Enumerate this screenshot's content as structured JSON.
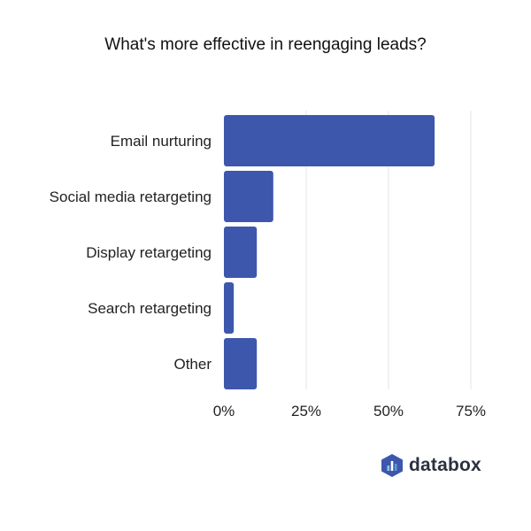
{
  "chart_data": {
    "type": "bar",
    "orientation": "horizontal",
    "title": "What's more effective in reengaging leads?",
    "categories": [
      "Email nurturing",
      "Social media retargeting",
      "Display retargeting",
      "Search retargeting",
      "Other"
    ],
    "values": [
      64,
      15,
      10,
      3,
      10
    ],
    "xlabel": "",
    "ylabel": "",
    "xlim": [
      0,
      75
    ],
    "ticks": [
      "0%",
      "25%",
      "50%",
      "75%"
    ],
    "tick_values": [
      0,
      25,
      50,
      75
    ],
    "grid": true,
    "bar_color": "#3d57ad",
    "grid_color": "#e6e6e6"
  },
  "brand": {
    "name": "databox",
    "icon": "databox-logo-icon",
    "colors": [
      "#3d57ad",
      "#5b9bd5",
      "#8fc3ec"
    ]
  }
}
